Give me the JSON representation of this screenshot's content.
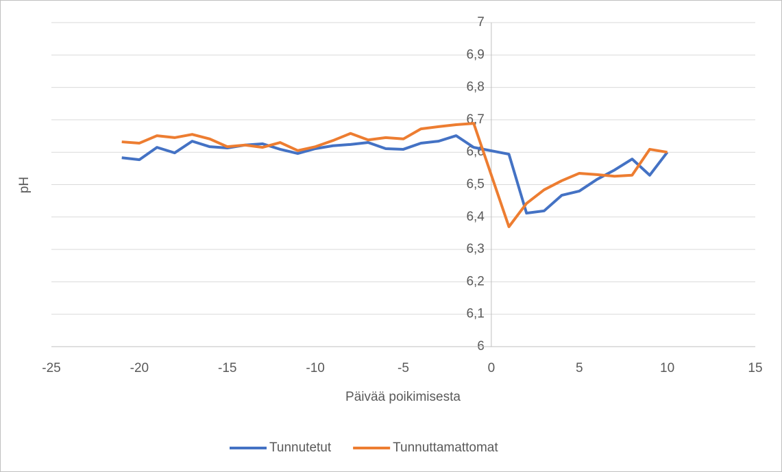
{
  "chart_data": {
    "type": "line",
    "x_label": "Päivää poikimisesta",
    "y_label": "pH",
    "xlim": [
      -25,
      15
    ],
    "xticks": [
      -25,
      -20,
      -15,
      -10,
      -5,
      0,
      5,
      10,
      15
    ],
    "ylim": [
      6,
      7
    ],
    "yticks": [
      6,
      {
        "value": 6.1,
        "label": "6,1"
      },
      {
        "value": 6.2,
        "label": "6,2"
      },
      {
        "value": 6.3,
        "label": "6,3"
      },
      {
        "value": 6.4,
        "label": "6,4"
      },
      {
        "value": 6.5,
        "label": "6,5"
      },
      {
        "value": 6.6,
        "label": "6,6"
      },
      {
        "value": 6.7,
        "label": "6,7"
      },
      {
        "value": 6.8,
        "label": "6,8"
      },
      {
        "value": 6.9,
        "label": "6,9"
      },
      7
    ],
    "grid": true,
    "legend": "bottom",
    "x": [
      -21,
      -20,
      -19,
      -18,
      -17,
      -16,
      -15,
      -14,
      -13,
      -12,
      -11,
      -10,
      -9,
      -8,
      -7,
      -6,
      -5,
      -4,
      -3,
      -2,
      -1,
      1,
      2,
      3,
      4,
      5,
      6,
      7,
      8,
      9,
      10
    ],
    "series": [
      {
        "name": "Tunnutetut",
        "color": "#4472c4",
        "values": [
          6.583,
          6.577,
          6.615,
          6.598,
          6.634,
          6.617,
          6.613,
          6.622,
          6.626,
          6.609,
          6.596,
          6.611,
          6.62,
          6.624,
          6.63,
          6.611,
          6.609,
          6.628,
          6.634,
          6.651,
          6.615,
          6.594,
          6.412,
          6.419,
          6.467,
          6.48,
          6.516,
          6.545,
          6.579,
          6.529,
          6.6
        ]
      },
      {
        "name": "Tunnuttamattomat",
        "color": "#ed7d31",
        "values": [
          6.632,
          6.628,
          6.651,
          6.645,
          6.655,
          6.641,
          6.617,
          6.622,
          6.615,
          6.63,
          6.605,
          6.617,
          6.636,
          6.658,
          6.638,
          6.645,
          6.641,
          6.672,
          6.679,
          6.685,
          6.689,
          6.37,
          6.442,
          6.484,
          6.512,
          6.535,
          6.531,
          6.526,
          6.529,
          6.609,
          6.6
        ]
      }
    ]
  }
}
